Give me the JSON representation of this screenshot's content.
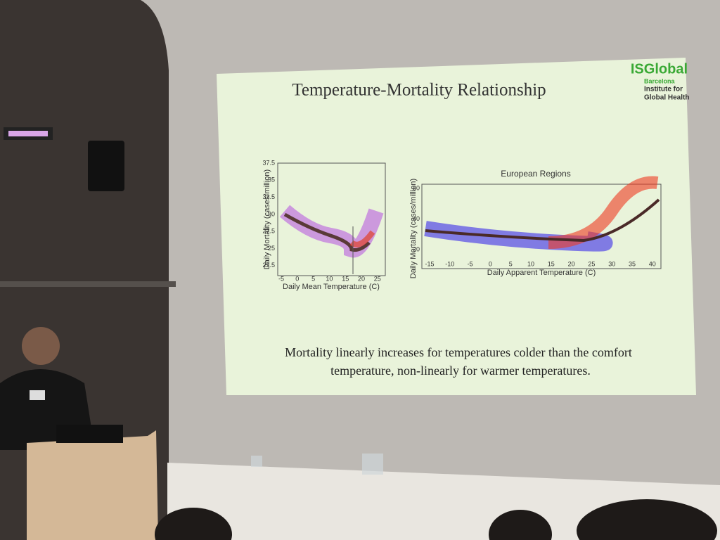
{
  "slide": {
    "title": "Temperature-Mortality Relationship",
    "logo": {
      "name": "ISGlobal",
      "city": "Barcelona",
      "line1": "Institute for",
      "line2": "Global Health"
    },
    "left_chart": {
      "ylabel": "Daily Mortality (cases/million)",
      "xlabel": "Daily Mean Temperature (C)",
      "yticks": [
        "37.5",
        "35",
        "32.5",
        "30",
        "27.5",
        "25",
        "22.5"
      ],
      "xticks": [
        "-5",
        "0",
        "5",
        "10",
        "15",
        "20",
        "25"
      ]
    },
    "right_chart": {
      "title": "European Regions",
      "ylabel": "Daily Mortality (cases/million)",
      "xlabel": "Daily Apparent Temperature (C)",
      "yticks": [
        "60",
        "40",
        "20"
      ],
      "xticks": [
        "-15",
        "-10",
        "-5",
        "0",
        "5",
        "10",
        "15",
        "20",
        "25",
        "30",
        "35",
        "40"
      ]
    },
    "caption": [
      "Mortality linearly increases for temperatures colder than the comfort",
      "temperature, non-linearly for warmer temperatures."
    ]
  }
}
